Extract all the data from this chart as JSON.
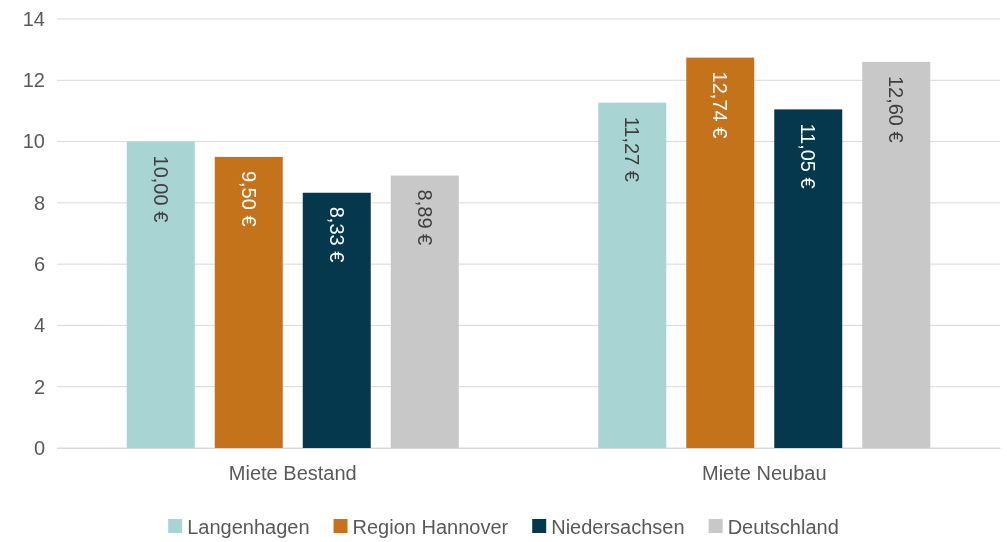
{
  "chart_data": {
    "type": "bar",
    "categories": [
      "Miete Bestand",
      "Miete Neubau"
    ],
    "series": [
      {
        "name": "Langenhagen",
        "color": "#a8d4d4",
        "values": [
          10.0,
          11.27
        ],
        "value_labels": [
          "10,00 €",
          "11,27 €"
        ]
      },
      {
        "name": "Region Hannover",
        "color": "#c5731b",
        "values": [
          9.5,
          12.74
        ],
        "value_labels": [
          "9,50 €",
          "12,74 €"
        ]
      },
      {
        "name": "Niedersachsen",
        "color": "#05384c",
        "values": [
          8.33,
          11.05
        ],
        "value_labels": [
          "8,33 €",
          "11,05 €"
        ]
      },
      {
        "name": "Deutschland",
        "color": "#c8c8c8",
        "values": [
          8.89,
          12.6
        ],
        "value_labels": [
          "8,89 €",
          "12,60 €"
        ]
      }
    ],
    "ylim": [
      0,
      14
    ],
    "yticks": [
      0,
      2,
      4,
      6,
      8,
      10,
      12,
      14
    ],
    "grid": "y",
    "legend": "bottom"
  }
}
